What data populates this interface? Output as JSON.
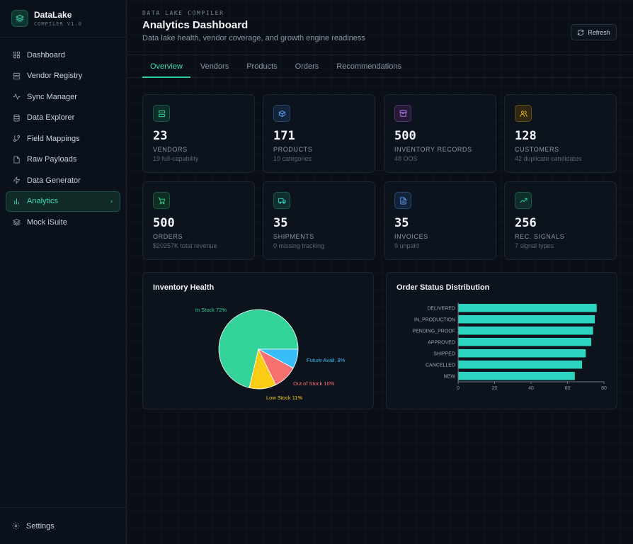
{
  "brand": {
    "name": "DataLake",
    "sub": "COMPILER V1.0"
  },
  "sidebar": {
    "items": [
      {
        "label": "Dashboard",
        "icon": "grid-icon"
      },
      {
        "label": "Vendor Registry",
        "icon": "server-icon"
      },
      {
        "label": "Sync Manager",
        "icon": "activity-icon"
      },
      {
        "label": "Data Explorer",
        "icon": "database-icon"
      },
      {
        "label": "Field Mappings",
        "icon": "git-branch-icon"
      },
      {
        "label": "Raw Payloads",
        "icon": "file-icon"
      },
      {
        "label": "Data Generator",
        "icon": "zap-icon"
      },
      {
        "label": "Analytics",
        "icon": "bar-chart-icon",
        "active": true
      },
      {
        "label": "Mock iSuite",
        "icon": "layers-icon"
      }
    ],
    "footer": "Settings"
  },
  "header": {
    "eyebrow": "DATA LAKE COMPILER",
    "title": "Analytics Dashboard",
    "subtitle": "Data lake health, vendor coverage, and growth engine readiness",
    "refresh_label": "Refresh"
  },
  "tabs": [
    "Overview",
    "Vendors",
    "Products",
    "Orders",
    "Recommendations"
  ],
  "stats": [
    {
      "value": "23",
      "label": "VENDORS",
      "sub": "19 full-capability",
      "icon": "server-icon",
      "color": "#2dd4a7",
      "bg": "#0f2e2a"
    },
    {
      "value": "171",
      "label": "PRODUCTS",
      "sub": "10 categories",
      "icon": "box-icon",
      "color": "#60a5fa",
      "bg": "#13243a"
    },
    {
      "value": "500",
      "label": "INVENTORY RECORDS",
      "sub": "48 OOS",
      "icon": "archive-icon",
      "color": "#c084fc",
      "bg": "#261a38"
    },
    {
      "value": "128",
      "label": "CUSTOMERS",
      "sub": "42 duplicate candidates",
      "icon": "users-icon",
      "color": "#fbbf24",
      "bg": "#2e2712"
    },
    {
      "value": "500",
      "label": "ORDERS",
      "sub": "$20257K total revenue",
      "icon": "cart-icon",
      "color": "#34d399",
      "bg": "#0f2e22"
    },
    {
      "value": "35",
      "label": "SHIPMENTS",
      "sub": "0 missing tracking",
      "icon": "truck-icon",
      "color": "#2dd4bf",
      "bg": "#0f2e2d"
    },
    {
      "value": "35",
      "label": "INVOICES",
      "sub": "9 unpaid",
      "icon": "file-text-icon",
      "color": "#60a5fa",
      "bg": "#13243a"
    },
    {
      "value": "256",
      "label": "REC. SIGNALS",
      "sub": "7 signal types",
      "icon": "trending-up-icon",
      "color": "#2dd4a7",
      "bg": "#0f2e2a"
    }
  ],
  "chart_data": [
    {
      "type": "pie",
      "title": "Inventory Health",
      "categories": [
        "In Stock",
        "Future Avail.",
        "Out of Stock",
        "Low Stock"
      ],
      "labels": [
        "In Stock 72%",
        "Future Avail. 8%",
        "Out of Stock 10%",
        "Low Stock 11%"
      ],
      "values": [
        72,
        8,
        10,
        11
      ],
      "colors": [
        "#34d399",
        "#38bdf8",
        "#f87171",
        "#facc15"
      ]
    },
    {
      "type": "bar",
      "orientation": "horizontal",
      "title": "Order Status Distribution",
      "categories": [
        "DELIVERED",
        "IN_PRODUCTION",
        "PENDING_PROOF",
        "APPROVED",
        "SHIPPED",
        "CANCELLED",
        "NEW"
      ],
      "values": [
        76,
        75,
        74,
        73,
        70,
        68,
        64
      ],
      "xlim": [
        0,
        80
      ],
      "xticks": [
        0,
        20,
        40,
        60,
        80
      ],
      "color": "#2dd4bf"
    }
  ]
}
